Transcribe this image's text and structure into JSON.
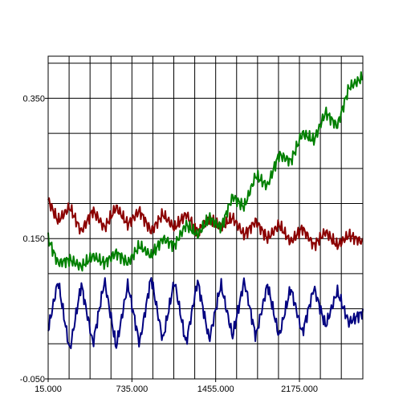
{
  "chart_data": {
    "type": "line",
    "title": "",
    "xlabel": "",
    "ylabel": "",
    "xlim": [
      15,
      2720
    ],
    "ylim": [
      -0.05,
      0.41
    ],
    "x_tick_labels": [
      {
        "value": 15,
        "label": "15.000"
      },
      {
        "value": 735,
        "label": "735.000"
      },
      {
        "value": 1455,
        "label": "1455.000"
      },
      {
        "value": 2175,
        "label": "2175.000"
      }
    ],
    "y_tick_labels": [
      {
        "value": 0.35,
        "label": "0.350"
      },
      {
        "value": 0.15,
        "label": "0.150"
      },
      {
        "value": -0.05,
        "label": "-0.050"
      }
    ],
    "x_gridlines": [
      15,
      195,
      375,
      555,
      735,
      915,
      1095,
      1275,
      1455,
      1635,
      1815,
      1995,
      2175,
      2355,
      2535
    ],
    "y_gridlines": [
      0.0,
      0.05,
      0.1,
      0.15,
      0.2,
      0.25,
      0.3,
      0.35,
      0.4
    ],
    "grid": true,
    "series": [
      {
        "color": "#8b0000",
        "x": [
          15,
          100,
          200,
          300,
          400,
          500,
          600,
          700,
          800,
          900,
          1000,
          1100,
          1200,
          1300,
          1400,
          1500,
          1600,
          1700,
          1800,
          1900,
          2000,
          2100,
          2200,
          2300,
          2400,
          2500,
          2600,
          2720
        ],
        "y": [
          0.205,
          0.175,
          0.195,
          0.16,
          0.19,
          0.165,
          0.195,
          0.17,
          0.19,
          0.16,
          0.185,
          0.165,
          0.185,
          0.16,
          0.18,
          0.165,
          0.18,
          0.155,
          0.175,
          0.15,
          0.17,
          0.145,
          0.165,
          0.14,
          0.16,
          0.14,
          0.155,
          0.145
        ]
      },
      {
        "color": "#008000",
        "x": [
          15,
          100,
          200,
          300,
          400,
          500,
          600,
          700,
          800,
          900,
          1000,
          1100,
          1200,
          1300,
          1400,
          1500,
          1600,
          1700,
          1800,
          1900,
          2000,
          2100,
          2200,
          2300,
          2400,
          2500,
          2600,
          2720
        ],
        "y": [
          0.15,
          0.115,
          0.12,
          0.11,
          0.125,
          0.115,
          0.13,
          0.115,
          0.14,
          0.125,
          0.15,
          0.14,
          0.17,
          0.155,
          0.18,
          0.165,
          0.21,
          0.195,
          0.24,
          0.225,
          0.27,
          0.26,
          0.3,
          0.29,
          0.33,
          0.31,
          0.365,
          0.38
        ]
      },
      {
        "color": "#000080",
        "x": [
          15,
          100,
          200,
          300,
          400,
          500,
          600,
          700,
          800,
          900,
          1000,
          1100,
          1200,
          1300,
          1400,
          1500,
          1600,
          1700,
          1800,
          1900,
          2000,
          2100,
          2200,
          2300,
          2400,
          2500,
          2600,
          2720
        ],
        "y": [
          0.02,
          0.09,
          -0.01,
          0.085,
          0.0,
          0.09,
          -0.005,
          0.085,
          0.0,
          0.095,
          0.005,
          0.09,
          0.0,
          0.09,
          0.005,
          0.085,
          0.01,
          0.09,
          0.01,
          0.085,
          0.01,
          0.08,
          0.015,
          0.08,
          0.025,
          0.075,
          0.03,
          0.045
        ]
      }
    ]
  }
}
